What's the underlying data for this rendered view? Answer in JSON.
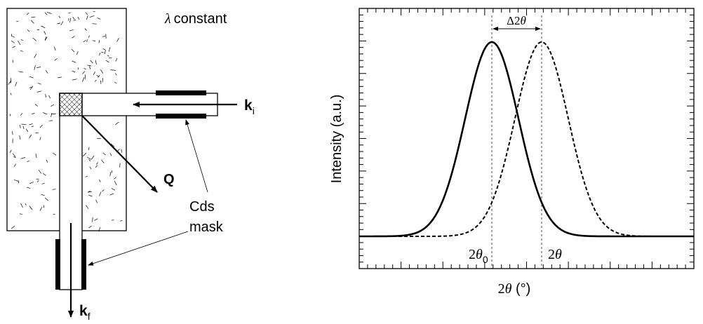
{
  "left_diagram": {
    "wavelength_symbol": "λ",
    "wavelength_label": "constant",
    "q_label": "Q",
    "ki_main": "k",
    "ki_sub": "i",
    "kf_main": "k",
    "kf_sub": "f",
    "cds_label": "Cds",
    "mask_label": "mask"
  },
  "right_plot": {
    "ylabel": "Intensity (a.u.)",
    "xlabel_two": "2",
    "xlabel_theta": "θ",
    "xlabel_unit": " (°)",
    "delta_symbol": "Δ2",
    "delta_theta": "θ",
    "peak0_two": "2",
    "peak0_theta": "θ",
    "peak0_sub": "0",
    "peak_two": "2",
    "peak_theta": "θ"
  },
  "chart_data": {
    "type": "line",
    "title": "",
    "xlabel": "2θ (°)",
    "ylabel": "Intensity (a.u.)",
    "x_ticks_labeled": false,
    "y_ticks_labeled": false,
    "series": [
      {
        "style": "solid",
        "peak_label": "2θ0",
        "peak_position": "2θ0",
        "shape": "gaussian",
        "relative_height": 1.0
      },
      {
        "style": "dashed",
        "peak_label": "2θ",
        "peak_position": "2θ",
        "shape": "gaussian",
        "relative_height": 1.0
      }
    ],
    "annotation": "Δ2θ"
  }
}
